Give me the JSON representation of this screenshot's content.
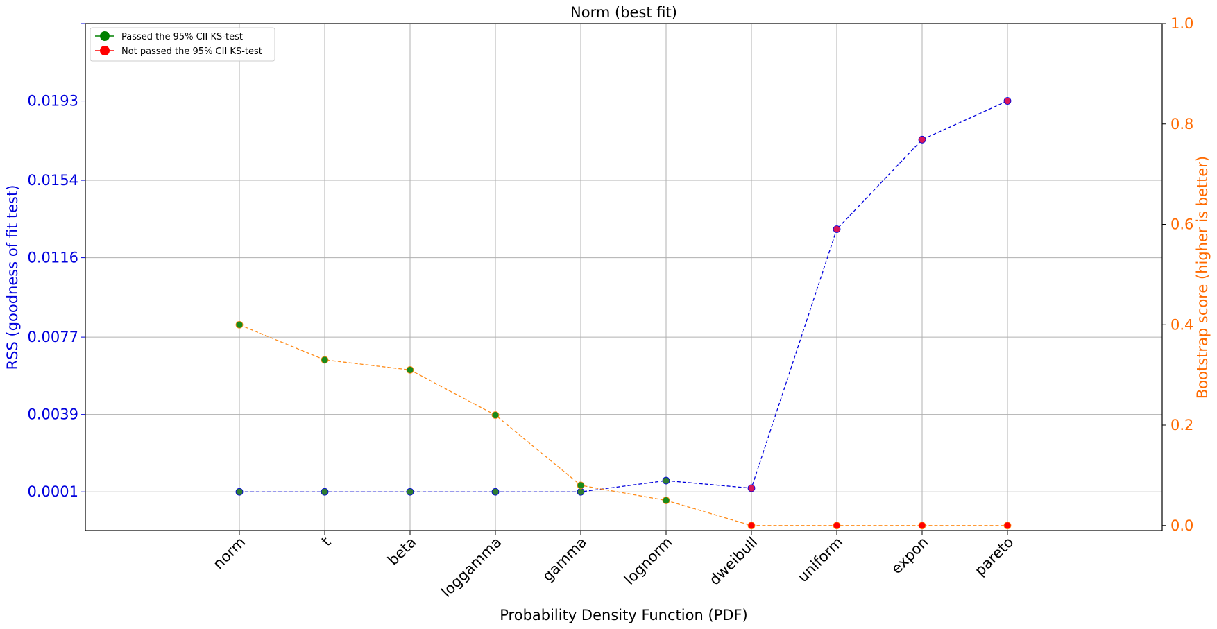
{
  "chart_data": {
    "type": "line",
    "title": "Norm (best fit)",
    "xlabel": "Probability Density Function (PDF)",
    "ylabel_left": "RSS (goodness of fit test)",
    "ylabel_right": "Bootstrap score (higher is better)",
    "categories": [
      "norm",
      "t",
      "beta",
      "loggamma",
      "gamma",
      "lognorm",
      "dweibull",
      "uniform",
      "expon",
      "pareto"
    ],
    "left_axis": {
      "ticks": [
        0.0001,
        0.0039,
        0.0077,
        0.0116,
        0.0154,
        0.0193
      ],
      "tick_labels": [
        "0.0001",
        "0.0039",
        "0.0077",
        "0.0116",
        "0.0154",
        "0.0193"
      ],
      "ylim": [
        -0.0018,
        0.0231
      ]
    },
    "right_axis": {
      "ticks": [
        0.0,
        0.2,
        0.4,
        0.6,
        0.8,
        1.0
      ],
      "tick_labels": [
        "0.0",
        "0.2",
        "0.4",
        "0.6",
        "0.8",
        "1.0"
      ],
      "ylim": [
        -0.01,
        1.0
      ]
    },
    "series": [
      {
        "name": "RSS",
        "axis": "left",
        "color": "#0000dd",
        "values": [
          0.0001,
          0.0001,
          0.0001,
          0.0001,
          0.0001,
          0.00065,
          0.00028,
          0.013,
          0.0174,
          0.0193
        ],
        "marker_colors": [
          "#2e7d32",
          "#2e7d32",
          "#2e7d32",
          "#2e7d32",
          "#2e7d32",
          "#2e7d32",
          "#d8175a",
          "#d8175a",
          "#d8175a",
          "#d8175a"
        ]
      },
      {
        "name": "Bootstrap score",
        "axis": "right",
        "color": "#ff8c1a",
        "values": [
          0.4,
          0.33,
          0.31,
          0.22,
          0.08,
          0.05,
          0.0,
          0.0,
          0.0,
          0.0
        ],
        "marker_colors": [
          "#1a8a1a",
          "#1a8a1a",
          "#1a8a1a",
          "#1a8a1a",
          "#1a8a1a",
          "#1a8a1a",
          "#ff0000",
          "#ff0000",
          "#ff0000",
          "#ff0000"
        ]
      }
    ],
    "legend": {
      "position": "upper-left",
      "entries": [
        {
          "label": "Passed the 95% CII KS-test",
          "color": "#008000"
        },
        {
          "label": "Not passed the 95% CII KS-test",
          "color": "#ff0000"
        }
      ]
    },
    "grid": true,
    "colors": {
      "left_axis": "#0000dd",
      "right_axis": "#ff6a00",
      "grid": "#b0b0b0"
    }
  }
}
